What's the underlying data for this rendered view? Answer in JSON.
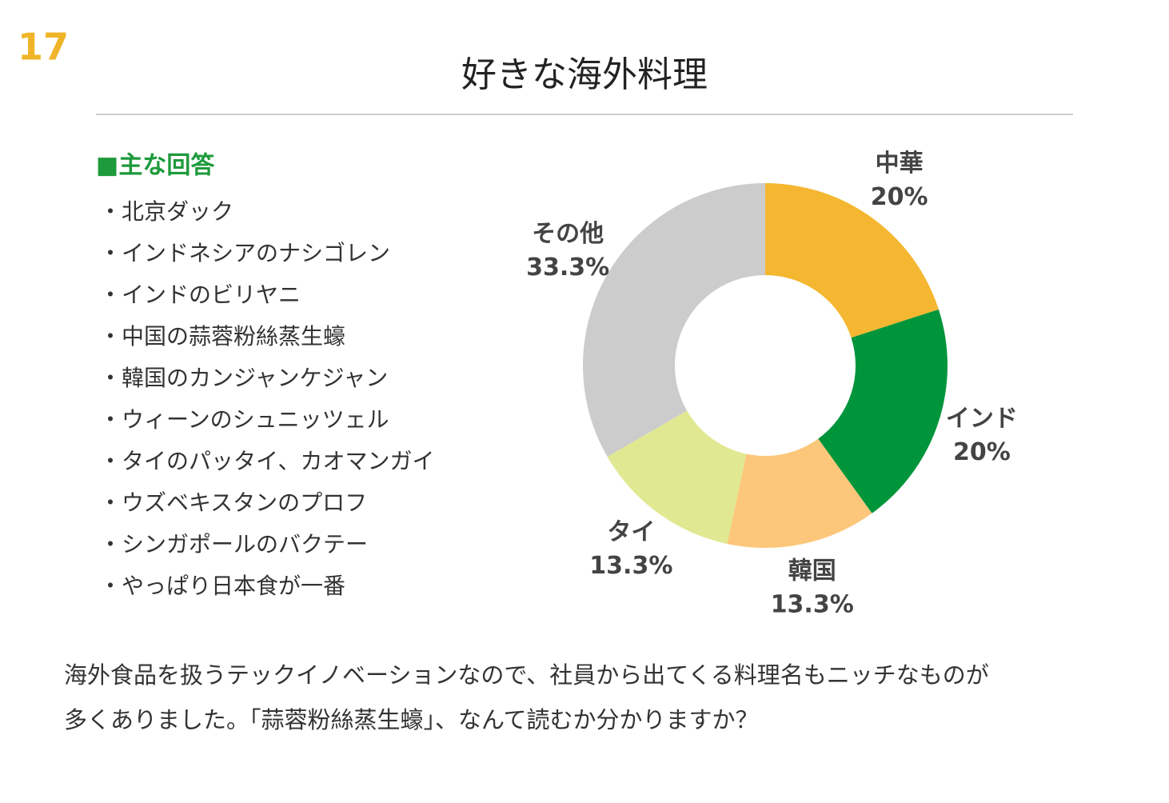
{
  "page_number": "17",
  "title": "好きな海外料理",
  "answers": {
    "heading": "■主な回答",
    "items": [
      "・北京ダック",
      "・インドネシアのナシゴレン",
      "・インドのビリヤニ",
      "・中国の蒜蓉粉絲蒸生蠔",
      "・韓国のカンジャンケジャン",
      "・ウィーンのシュニッツェル",
      "・タイのパッタイ、カオマンガイ",
      "・ウズベキスタンのプロフ",
      "・シンガポールのバクテー",
      "・やっぱり日本食が一番"
    ]
  },
  "chart_data": {
    "type": "donut",
    "categories": [
      "中華",
      "インド",
      "韓国",
      "タイ",
      "その他"
    ],
    "values": [
      20,
      20,
      13.3,
      13.3,
      33.3
    ],
    "value_labels": [
      "20%",
      "20%",
      "13.3%",
      "13.3%",
      "33.3%"
    ],
    "colors": [
      "#f5b731",
      "#00953b",
      "#fcc77a",
      "#e0e891",
      "#cccccc"
    ]
  },
  "comment": [
    "海外食品を扱うテックイノベーションなので、社員から出てくる料理名もニッチなものが",
    "多くありました。「蒜蓉粉絲蒸生蠔」、なんて読むか分かりますか？"
  ]
}
